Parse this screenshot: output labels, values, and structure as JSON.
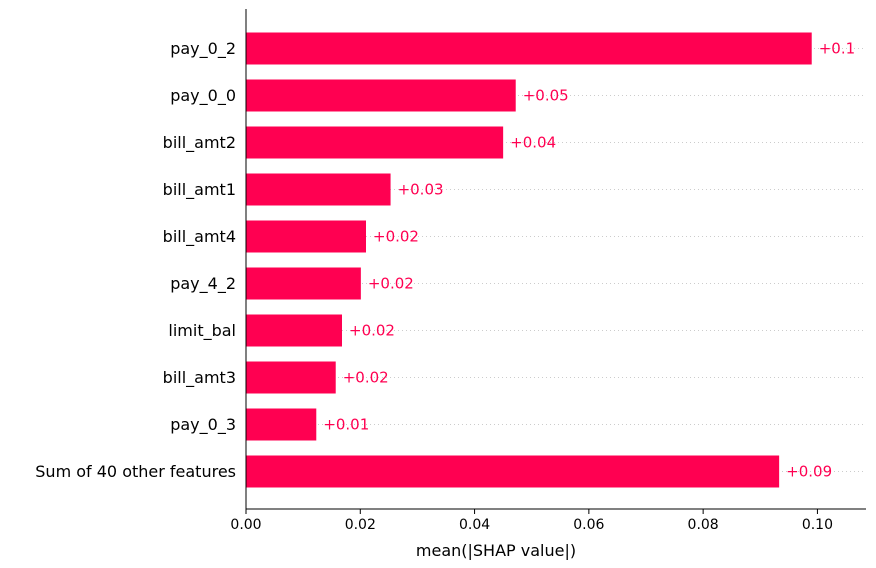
{
  "chart_data": {
    "type": "bar",
    "orientation": "horizontal",
    "categories": [
      "pay_0_2",
      "pay_0_0",
      "bill_amt2",
      "bill_amt1",
      "bill_amt4",
      "pay_4_2",
      "limit_bal",
      "bill_amt3",
      "pay_0_3",
      "Sum of 40 other features"
    ],
    "values": [
      0.099,
      0.0472,
      0.045,
      0.0253,
      0.021,
      0.0201,
      0.0168,
      0.0157,
      0.0123,
      0.0933
    ],
    "value_labels": [
      "+0.1",
      "+0.05",
      "+0.04",
      "+0.03",
      "+0.02",
      "+0.02",
      "+0.02",
      "+0.02",
      "+0.01",
      "+0.09"
    ],
    "xlabel": "mean(|SHAP value|)",
    "xlim": [
      0,
      0.1085
    ],
    "xticks": [
      0,
      0.02,
      0.04,
      0.06,
      0.08,
      0.1
    ],
    "xtick_labels": [
      "0.00",
      "0.02",
      "0.04",
      "0.06",
      "0.08",
      "0.10"
    ],
    "bar_color": "#ff0051",
    "label_color": "#ff0051",
    "grid_color": "#cccccc",
    "row_gridlines": "dotted"
  }
}
